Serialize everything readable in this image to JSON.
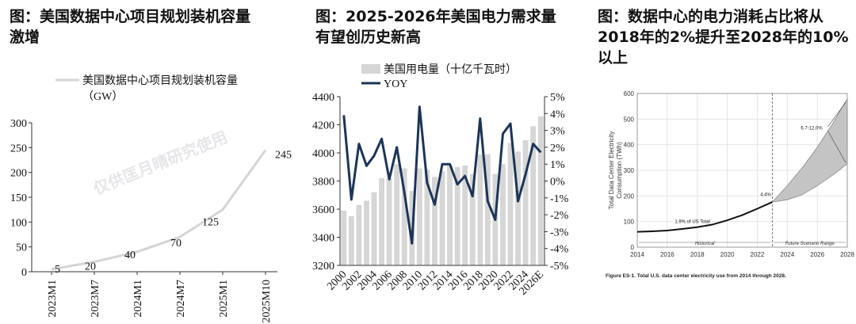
{
  "charts": [
    {
      "title": "图：美国数据中心项目规划装机容量\n激增",
      "watermark": "仅供匡月晴研究使用",
      "chart_data": {
        "type": "line",
        "categories": [
          "2023M1",
          "2023M7",
          "2024M1",
          "2024M7",
          "2025M1",
          "2025M10"
        ],
        "series": [
          {
            "name": "美国数据中心项目规划装机容量（GW）",
            "values": [
              5,
              20,
              40,
              70,
              125,
              245
            ]
          }
        ],
        "legend_line1": "美国数据中心项目规划装机容量",
        "legend_line2": "（GW）",
        "ylim": [
          0,
          300
        ],
        "yticks": [
          "0",
          "50",
          "100",
          "150",
          "200",
          "250",
          "300"
        ],
        "data_labels": [
          "5",
          "20",
          "40",
          "70",
          "125",
          "245"
        ],
        "color": "#d4d4d4",
        "grid": false
      }
    },
    {
      "title": "图：2025-2026年美国电力需求量\n有望创历史新高",
      "chart_data": {
        "type": "bar",
        "categories": [
          "2000",
          "2001",
          "2002",
          "2003",
          "2004",
          "2005",
          "2006",
          "2007",
          "2008",
          "2009",
          "2010",
          "2011",
          "2012",
          "2013",
          "2014",
          "2015",
          "2016",
          "2017",
          "2018",
          "2019",
          "2020",
          "2021",
          "2022",
          "2023",
          "2024",
          "2025E",
          "2026E"
        ],
        "x_tick_labels": [
          "2000",
          "2002",
          "2004",
          "2006",
          "2008",
          "2010",
          "2012",
          "2014",
          "2016",
          "2018",
          "2020",
          "2022",
          "2024",
          "2026E"
        ],
        "series": [
          {
            "name": "美国用电量（十亿千瓦时）",
            "type": "bar",
            "axis": "left",
            "color": "#d6d6d6",
            "values": [
              3590,
              3550,
              3630,
              3660,
              3720,
              3820,
              3820,
              3920,
              3890,
              3730,
              3890,
              3880,
              3830,
              3870,
              3910,
              3900,
              3910,
              3850,
              3990,
              3990,
              3850,
              3920,
              4070,
              4010,
              4090,
              4190,
              4260
            ]
          },
          {
            "name": "YOY",
            "type": "line",
            "axis": "right",
            "color": "#1c3557",
            "values": [
              3.9,
              -1.1,
              2.2,
              0.9,
              1.5,
              2.5,
              0.1,
              2.0,
              -0.7,
              -3.7,
              4.4,
              -0.1,
              -1.4,
              1.0,
              1.0,
              -0.2,
              0.3,
              -0.9,
              3.7,
              -1.2,
              -2.3,
              2.8,
              3.4,
              -1.2,
              0.4,
              2.2,
              1.7
            ]
          }
        ],
        "ylim_left": [
          3200,
          4400
        ],
        "yticks_left": [
          "3200",
          "3400",
          "3600",
          "3800",
          "4000",
          "4200",
          "4400"
        ],
        "ylim_right": [
          -5,
          5
        ],
        "yticks_right": [
          "-5%",
          "-4%",
          "-3%",
          "-2%",
          "-1%",
          "0%",
          "1%",
          "2%",
          "3%",
          "4%",
          "5%"
        ],
        "legend_position": "top-left",
        "grid": false
      }
    },
    {
      "title": "图：数据中心的电力消耗占比将从\n2018年的2%提升至2028年的10%\n以上",
      "chart_data": {
        "type": "area",
        "x": [
          2014,
          2016,
          2018,
          2020,
          2022,
          2023,
          2024,
          2026,
          2028
        ],
        "series": [
          {
            "name": "Historical",
            "x": [
              2014,
              2015,
              2016,
              2017,
              2018,
              2019,
              2020,
              2021,
              2022,
              2023
            ],
            "values": [
              60,
              62,
              65,
              71,
              78,
              88,
              105,
              125,
              150,
              176
            ],
            "color": "#111111"
          },
          {
            "name": "Future Scenario Range (low)",
            "x": [
              2023,
              2024,
              2025,
              2026,
              2027,
              2028
            ],
            "values": [
              176,
              185,
              205,
              240,
              280,
              325
            ],
            "color": "#b5b5b5"
          },
          {
            "name": "Future Scenario Range (high)",
            "x": [
              2023,
              2024,
              2025,
              2026,
              2027,
              2028
            ],
            "values": [
              176,
              240,
              310,
              390,
              480,
              580
            ],
            "color": "#b5b5b5"
          }
        ],
        "ylabel_line1": "Total Data Center Electricity",
        "ylabel_line2": "Consumption (TWh)",
        "xlim": [
          2014,
          2028
        ],
        "ylim": [
          0,
          600
        ],
        "xticks": [
          "2014",
          "2016",
          "2018",
          "2020",
          "2022",
          "2024",
          "2026",
          "2028"
        ],
        "yticks": [
          "0",
          "100",
          "200",
          "300",
          "400",
          "500",
          "600"
        ],
        "annotations": [
          "1.9% of US Total",
          "4.4%",
          "6.7-12.0%"
        ],
        "range_labels": [
          "Historical",
          "Future Scenario Range"
        ],
        "caption": "Figure ES-1. Total U.S. data center electricity use from 2014 through 2028.",
        "grid": true
      }
    }
  ]
}
